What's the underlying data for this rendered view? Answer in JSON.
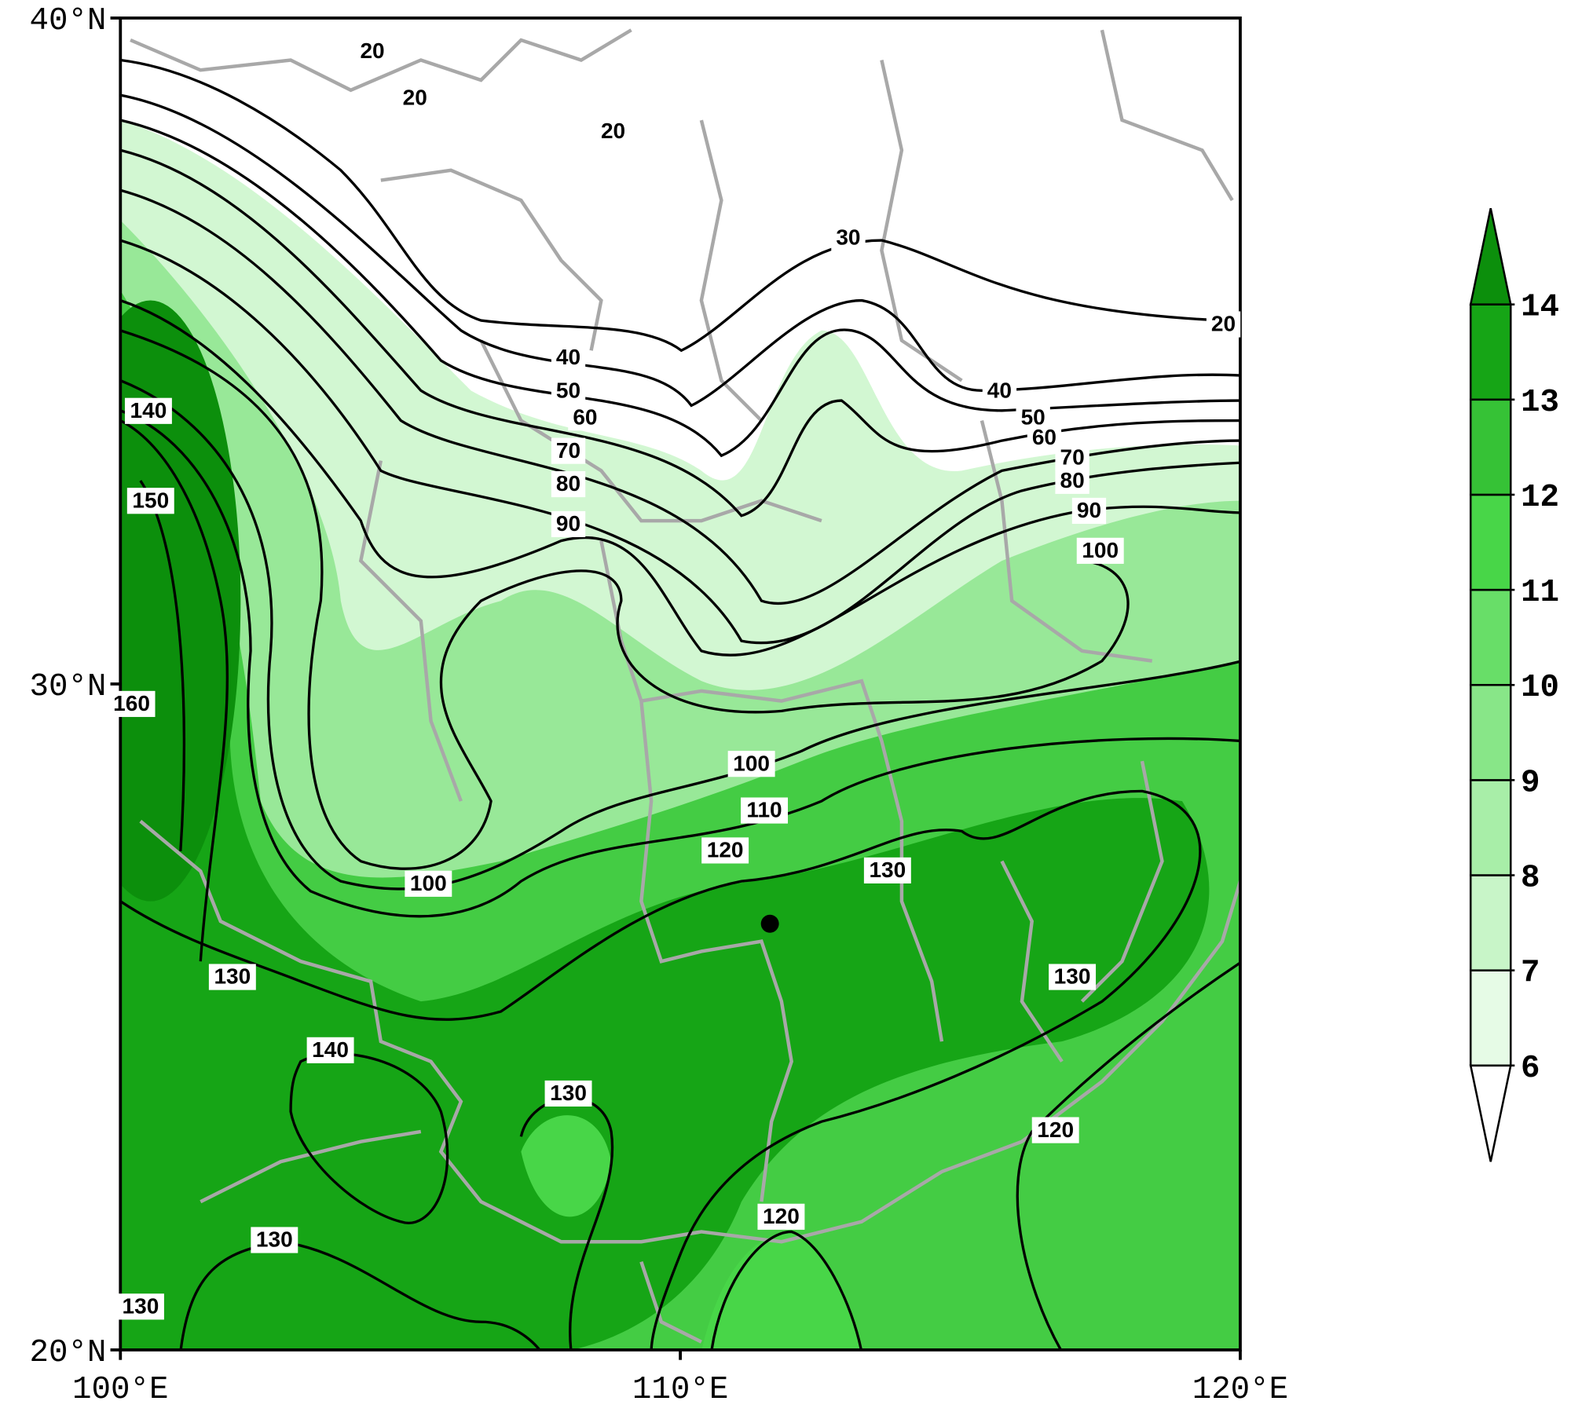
{
  "map": {
    "lonlim": [
      100,
      120
    ],
    "latlim": [
      20,
      40
    ],
    "lon_ticks": [
      {
        "value": 100,
        "label": "100°E"
      },
      {
        "value": 110,
        "label": "110°E"
      },
      {
        "value": 120,
        "label": "120°E"
      }
    ],
    "lat_ticks": [
      {
        "value": 20,
        "label": "20°N"
      },
      {
        "value": 30,
        "label": "30°N"
      },
      {
        "value": 40,
        "label": "40°N"
      }
    ],
    "colorbar": {
      "levels": [
        6,
        7,
        8,
        9,
        10,
        11,
        12,
        13,
        14
      ],
      "colors": [
        "#ffffff",
        "#e6fbe6",
        "#c8f5c8",
        "#a8eea8",
        "#88e688",
        "#68de68",
        "#48d648",
        "#36c236",
        "#16a516",
        "#0c8f0c"
      ]
    },
    "contour_labels": [
      {
        "value": 20,
        "lon": 104.5,
        "lat": 39.5
      },
      {
        "value": 20,
        "lon": 105.26,
        "lat": 38.8
      },
      {
        "value": 20,
        "lon": 108.8,
        "lat": 38.3
      },
      {
        "value": 30,
        "lon": 113.0,
        "lat": 36.7
      },
      {
        "value": 20,
        "lon": 119.7,
        "lat": 35.4
      },
      {
        "value": 40,
        "lon": 108.0,
        "lat": 34.9
      },
      {
        "value": 50,
        "lon": 108.0,
        "lat": 34.4
      },
      {
        "value": 60,
        "lon": 108.3,
        "lat": 34.0
      },
      {
        "value": 70,
        "lon": 108.0,
        "lat": 33.5
      },
      {
        "value": 80,
        "lon": 108.0,
        "lat": 33.0
      },
      {
        "value": 90,
        "lon": 108.0,
        "lat": 32.4
      },
      {
        "value": 40,
        "lon": 115.7,
        "lat": 34.4
      },
      {
        "value": 50,
        "lon": 116.3,
        "lat": 34.0
      },
      {
        "value": 60,
        "lon": 116.5,
        "lat": 33.7
      },
      {
        "value": 70,
        "lon": 117.0,
        "lat": 33.4
      },
      {
        "value": 80,
        "lon": 117.0,
        "lat": 33.05
      },
      {
        "value": 90,
        "lon": 117.3,
        "lat": 32.6
      },
      {
        "value": 100,
        "lon": 117.5,
        "lat": 32.0
      },
      {
        "value": 140,
        "lon": 100.5,
        "lat": 34.1
      },
      {
        "value": 150,
        "lon": 100.54,
        "lat": 32.75
      },
      {
        "value": 160,
        "lon": 100.2,
        "lat": 29.7
      },
      {
        "value": 100,
        "lon": 111.27,
        "lat": 28.8
      },
      {
        "value": 110,
        "lon": 111.5,
        "lat": 28.1
      },
      {
        "value": 120,
        "lon": 110.8,
        "lat": 27.5
      },
      {
        "value": 130,
        "lon": 113.7,
        "lat": 27.2
      },
      {
        "value": 100,
        "lon": 105.5,
        "lat": 27.0
      },
      {
        "value": 130,
        "lon": 102.0,
        "lat": 25.6
      },
      {
        "value": 130,
        "lon": 117.0,
        "lat": 25.6
      },
      {
        "value": 140,
        "lon": 103.75,
        "lat": 24.5
      },
      {
        "value": 130,
        "lon": 108.0,
        "lat": 23.85
      },
      {
        "value": 120,
        "lon": 116.7,
        "lat": 23.3
      },
      {
        "value": 120,
        "lon": 111.8,
        "lat": 22.0
      },
      {
        "value": 130,
        "lon": 102.75,
        "lat": 21.65
      },
      {
        "value": 130,
        "lon": 100.36,
        "lat": 20.65
      }
    ],
    "marker": {
      "lon": 111.6,
      "lat": 26.4
    }
  }
}
